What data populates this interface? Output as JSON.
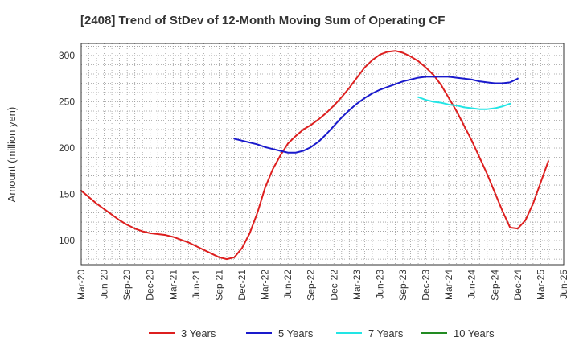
{
  "chart_data": {
    "type": "line",
    "title": "[2408]  Trend of StDev of 12-Month Moving Sum of Operating CF",
    "ylabel": "Amount (million yen)",
    "xlabel": "",
    "x_ticks": [
      "Mar-20",
      "Jun-20",
      "Sep-20",
      "Dec-20",
      "Mar-21",
      "Jun-21",
      "Sep-21",
      "Dec-21",
      "Mar-22",
      "Jun-22",
      "Sep-22",
      "Dec-22",
      "Mar-23",
      "Jun-23",
      "Sep-23",
      "Dec-23",
      "Mar-24",
      "Jun-24",
      "Sep-24",
      "Dec-24",
      "Mar-25",
      "Jun-25"
    ],
    "y_ticks": [
      100,
      150,
      200,
      250,
      300
    ],
    "ylim": [
      74,
      313
    ],
    "grid": true,
    "legend_position": "bottom",
    "series": [
      {
        "name": "3 Years",
        "color": "#dd1f1f",
        "start_month": "Mar-20",
        "values": [
          154,
          147,
          140,
          134,
          128,
          122,
          117,
          113,
          110,
          108,
          107,
          106,
          104,
          101,
          98,
          94,
          90,
          86,
          82,
          80,
          82,
          92,
          108,
          130,
          157,
          177,
          192,
          205,
          213,
          220,
          225,
          231,
          238,
          246,
          255,
          265,
          276,
          287,
          295,
          301,
          304,
          305,
          303,
          299,
          294,
          287,
          279,
          268,
          254,
          240,
          224,
          208,
          190,
          172,
          152,
          132,
          114,
          113,
          122,
          140,
          163,
          186
        ]
      },
      {
        "name": "5 Years",
        "color": "#1a1acc",
        "start_month": "Nov-21",
        "values": [
          210,
          208,
          206,
          204,
          201,
          199,
          197,
          195,
          195,
          197,
          201,
          207,
          215,
          224,
          233,
          241,
          248,
          254,
          259,
          263,
          266,
          269,
          272,
          274,
          276,
          277,
          277,
          277,
          277,
          276,
          275,
          274,
          272,
          271,
          270,
          270,
          271,
          275
        ]
      },
      {
        "name": "7 Years",
        "color": "#22e5e5",
        "start_month": "Nov-23",
        "values": [
          255,
          252,
          250,
          249,
          247,
          246,
          244,
          243,
          242,
          242,
          243,
          245,
          248
        ]
      },
      {
        "name": "10 Years",
        "color": "#228b22",
        "start_month": "",
        "values": []
      }
    ]
  }
}
